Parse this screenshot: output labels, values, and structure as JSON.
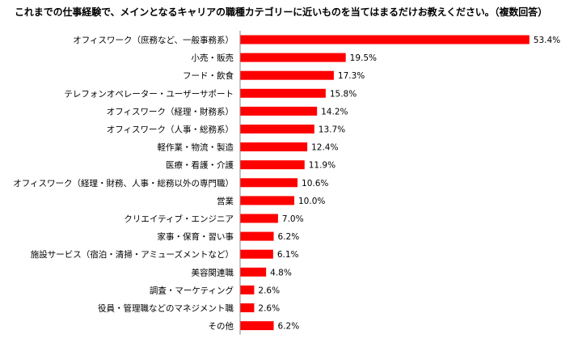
{
  "chart_data": {
    "type": "bar",
    "orientation": "horizontal",
    "title": "これまでの仕事経験で、メインとなるキャリアの職種カテゴリーに近いものを当てはまるだけお教えください。（複数回答）",
    "categories": [
      "オフィスワーク（庶務など、一般事務系）",
      "小売・販売",
      "フード・飲食",
      "テレフォンオペレーター・ユーザーサポート",
      "オフィスワーク（経理・財務系）",
      "オフィスワーク（人事・総務系）",
      "軽作業・物流・製造",
      "医療・看護・介護",
      "オフィスワーク（経理・財務、人事・総務以外の専門職）",
      "営業",
      "クリエイティブ・エンジニア",
      "家事・保育・習い事",
      "施設サービス（宿泊・清掃・アミューズメントなど）",
      "美容関連職",
      "調査・マーケティング",
      "役員・管理職などのマネジメント職",
      "その他"
    ],
    "values": [
      53.4,
      19.5,
      17.3,
      15.8,
      14.2,
      13.7,
      12.4,
      11.9,
      10.6,
      10.0,
      7.0,
      6.2,
      6.1,
      4.8,
      2.6,
      2.6,
      6.2
    ],
    "value_labels": [
      "53.4%",
      "19.5%",
      "17.3%",
      "15.8%",
      "14.2%",
      "13.7%",
      "12.4%",
      "11.9%",
      "10.6%",
      "10.0%",
      "7.0%",
      "6.2%",
      "6.1%",
      "4.8%",
      "2.6%",
      "2.6%",
      "6.2%"
    ],
    "unit": "%",
    "xlim": [
      0,
      55
    ],
    "grid": false,
    "legend": "none",
    "bar_color": "#ff0000",
    "axis_color": "#888888"
  }
}
